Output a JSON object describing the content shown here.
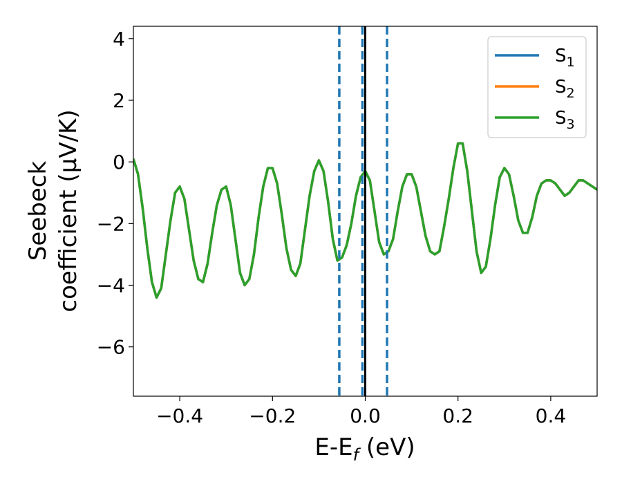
{
  "chart_data": {
    "type": "line",
    "xlabel": "E-E",
    "xlabel_sub": "f",
    "xlabel_unit": " (eV)",
    "ylabel_line1": "Seebeck",
    "ylabel_line2": "coefficient  (μV/K)",
    "xlim": [
      -0.5,
      0.5
    ],
    "ylim": [
      -7.6,
      4.4
    ],
    "xticks": [
      -0.4,
      -0.2,
      0.0,
      0.2,
      0.4
    ],
    "xtick_labels": [
      "−0.4",
      "−0.2",
      "0.0",
      "0.2",
      "0.4"
    ],
    "yticks": [
      4,
      2,
      0,
      -2,
      -4,
      -6
    ],
    "ytick_labels": [
      "4",
      "2",
      "0",
      "−2",
      "−4",
      "−6"
    ],
    "legend_position": "top-right",
    "series": [
      {
        "name": "S",
        "name_sub": "1",
        "color": "#1f77b4",
        "x": [
          -0.5,
          -0.49,
          -0.48,
          -0.47,
          -0.46,
          -0.45,
          -0.44,
          -0.43,
          -0.42,
          -0.41,
          -0.4,
          -0.39,
          -0.38,
          -0.37,
          -0.36,
          -0.35,
          -0.34,
          -0.33,
          -0.32,
          -0.31,
          -0.3,
          -0.29,
          -0.28,
          -0.27,
          -0.26,
          -0.25,
          -0.24,
          -0.23,
          -0.22,
          -0.21,
          -0.2,
          -0.19,
          -0.18,
          -0.17,
          -0.16,
          -0.15,
          -0.14,
          -0.13,
          -0.12,
          -0.11,
          -0.1,
          -0.09,
          -0.08,
          -0.07,
          -0.06,
          -0.05,
          -0.04,
          -0.03,
          -0.02,
          -0.01,
          0.0,
          0.01,
          0.02,
          0.03,
          0.04,
          0.05,
          0.06,
          0.07,
          0.08,
          0.09,
          0.1,
          0.11,
          0.12,
          0.13,
          0.14,
          0.15,
          0.16,
          0.17,
          0.18,
          0.19,
          0.2,
          0.21,
          0.22,
          0.23,
          0.24,
          0.25,
          0.26,
          0.27,
          0.28,
          0.29,
          0.3,
          0.31,
          0.32,
          0.33,
          0.34,
          0.35,
          0.36,
          0.37,
          0.38,
          0.39,
          0.4,
          0.41,
          0.42,
          0.43,
          0.44,
          0.45,
          0.46,
          0.47,
          0.48,
          0.49,
          0.5
        ],
        "y": [
          0.1,
          -0.4,
          -1.5,
          -2.8,
          -3.9,
          -4.4,
          -4.1,
          -3.0,
          -1.9,
          -1.0,
          -0.8,
          -1.2,
          -2.2,
          -3.2,
          -3.8,
          -3.9,
          -3.3,
          -2.3,
          -1.4,
          -0.9,
          -0.8,
          -1.4,
          -2.5,
          -3.6,
          -4.0,
          -3.8,
          -3.0,
          -1.8,
          -0.8,
          -0.2,
          -0.2,
          -0.7,
          -1.7,
          -2.8,
          -3.5,
          -3.7,
          -3.3,
          -2.2,
          -1.1,
          -0.3,
          0.05,
          -0.3,
          -1.3,
          -2.5,
          -3.2,
          -3.1,
          -2.7,
          -2.0,
          -1.1,
          -0.5,
          -0.3,
          -0.6,
          -1.6,
          -2.6,
          -3.0,
          -2.9,
          -2.5,
          -1.6,
          -0.8,
          -0.4,
          -0.4,
          -0.8,
          -1.6,
          -2.4,
          -2.9,
          -3.0,
          -2.9,
          -2.1,
          -1.2,
          -0.2,
          0.6,
          0.6,
          -0.3,
          -1.6,
          -2.9,
          -3.6,
          -3.4,
          -2.5,
          -1.4,
          -0.5,
          -0.2,
          -0.4,
          -1.1,
          -1.9,
          -2.3,
          -2.3,
          -1.8,
          -1.1,
          -0.7,
          -0.6,
          -0.6,
          -0.7,
          -0.9,
          -1.1,
          -1.0,
          -0.8,
          -0.6,
          -0.6,
          -0.7,
          -0.8,
          -0.9
        ]
      },
      {
        "name": "S",
        "name_sub": "2",
        "color": "#ff7f0e",
        "x": [
          -0.5,
          -0.49,
          -0.48,
          -0.47,
          -0.46,
          -0.45,
          -0.44,
          -0.43,
          -0.42,
          -0.41,
          -0.4,
          -0.39,
          -0.38,
          -0.37,
          -0.36,
          -0.35,
          -0.34,
          -0.33,
          -0.32,
          -0.31,
          -0.3,
          -0.29,
          -0.28,
          -0.27,
          -0.26,
          -0.25,
          -0.24,
          -0.23,
          -0.22,
          -0.21,
          -0.2,
          -0.19,
          -0.18,
          -0.17,
          -0.16,
          -0.15,
          -0.14,
          -0.13,
          -0.12,
          -0.11,
          -0.1,
          -0.09,
          -0.08,
          -0.07,
          -0.06,
          -0.05,
          -0.04,
          -0.03,
          -0.02,
          -0.01,
          0.0,
          0.01,
          0.02,
          0.03,
          0.04,
          0.05,
          0.06,
          0.07,
          0.08,
          0.09,
          0.1,
          0.11,
          0.12,
          0.13,
          0.14,
          0.15,
          0.16,
          0.17,
          0.18,
          0.19,
          0.2,
          0.21,
          0.22,
          0.23,
          0.24,
          0.25,
          0.26,
          0.27,
          0.28,
          0.29,
          0.3,
          0.31,
          0.32,
          0.33,
          0.34,
          0.35,
          0.36,
          0.37,
          0.38,
          0.39,
          0.4,
          0.41,
          0.42,
          0.43,
          0.44,
          0.45,
          0.46,
          0.47,
          0.48,
          0.49,
          0.5
        ],
        "y": [
          0.1,
          -0.4,
          -1.5,
          -2.8,
          -3.9,
          -4.4,
          -4.1,
          -3.0,
          -1.9,
          -1.0,
          -0.8,
          -1.2,
          -2.2,
          -3.2,
          -3.8,
          -3.9,
          -3.3,
          -2.3,
          -1.4,
          -0.9,
          -0.8,
          -1.4,
          -2.5,
          -3.6,
          -4.0,
          -3.8,
          -3.0,
          -1.8,
          -0.8,
          -0.2,
          -0.2,
          -0.7,
          -1.7,
          -2.8,
          -3.5,
          -3.7,
          -3.3,
          -2.2,
          -1.1,
          -0.3,
          0.05,
          -0.3,
          -1.3,
          -2.5,
          -3.2,
          -3.1,
          -2.7,
          -2.0,
          -1.1,
          -0.5,
          -0.3,
          -0.6,
          -1.6,
          -2.6,
          -3.0,
          -2.9,
          -2.5,
          -1.6,
          -0.8,
          -0.4,
          -0.4,
          -0.8,
          -1.6,
          -2.4,
          -2.9,
          -3.0,
          -2.9,
          -2.1,
          -1.2,
          -0.2,
          0.6,
          0.6,
          -0.3,
          -1.6,
          -2.9,
          -3.6,
          -3.4,
          -2.5,
          -1.4,
          -0.5,
          -0.2,
          -0.4,
          -1.1,
          -1.9,
          -2.3,
          -2.3,
          -1.8,
          -1.1,
          -0.7,
          -0.6,
          -0.6,
          -0.7,
          -0.9,
          -1.1,
          -1.0,
          -0.8,
          -0.6,
          -0.6,
          -0.7,
          -0.8,
          -0.9
        ]
      },
      {
        "name": "S",
        "name_sub": "3",
        "color": "#2ca02c",
        "x": [
          -0.5,
          -0.49,
          -0.48,
          -0.47,
          -0.46,
          -0.45,
          -0.44,
          -0.43,
          -0.42,
          -0.41,
          -0.4,
          -0.39,
          -0.38,
          -0.37,
          -0.36,
          -0.35,
          -0.34,
          -0.33,
          -0.32,
          -0.31,
          -0.3,
          -0.29,
          -0.28,
          -0.27,
          -0.26,
          -0.25,
          -0.24,
          -0.23,
          -0.22,
          -0.21,
          -0.2,
          -0.19,
          -0.18,
          -0.17,
          -0.16,
          -0.15,
          -0.14,
          -0.13,
          -0.12,
          -0.11,
          -0.1,
          -0.09,
          -0.08,
          -0.07,
          -0.06,
          -0.05,
          -0.04,
          -0.03,
          -0.02,
          -0.01,
          0.0,
          0.01,
          0.02,
          0.03,
          0.04,
          0.05,
          0.06,
          0.07,
          0.08,
          0.09,
          0.1,
          0.11,
          0.12,
          0.13,
          0.14,
          0.15,
          0.16,
          0.17,
          0.18,
          0.19,
          0.2,
          0.21,
          0.22,
          0.23,
          0.24,
          0.25,
          0.26,
          0.27,
          0.28,
          0.29,
          0.3,
          0.31,
          0.32,
          0.33,
          0.34,
          0.35,
          0.36,
          0.37,
          0.38,
          0.39,
          0.4,
          0.41,
          0.42,
          0.43,
          0.44,
          0.45,
          0.46,
          0.47,
          0.48,
          0.49,
          0.5
        ],
        "y": [
          0.1,
          -0.4,
          -1.5,
          -2.8,
          -3.9,
          -4.4,
          -4.1,
          -3.0,
          -1.9,
          -1.0,
          -0.8,
          -1.2,
          -2.2,
          -3.2,
          -3.8,
          -3.9,
          -3.3,
          -2.3,
          -1.4,
          -0.9,
          -0.8,
          -1.4,
          -2.5,
          -3.6,
          -4.0,
          -3.8,
          -3.0,
          -1.8,
          -0.8,
          -0.2,
          -0.2,
          -0.7,
          -1.7,
          -2.8,
          -3.5,
          -3.7,
          -3.3,
          -2.2,
          -1.1,
          -0.3,
          0.05,
          -0.3,
          -1.3,
          -2.5,
          -3.2,
          -3.1,
          -2.7,
          -2.0,
          -1.1,
          -0.5,
          -0.3,
          -0.6,
          -1.6,
          -2.6,
          -3.0,
          -2.9,
          -2.5,
          -1.6,
          -0.8,
          -0.4,
          -0.4,
          -0.8,
          -1.6,
          -2.4,
          -2.9,
          -3.0,
          -2.9,
          -2.1,
          -1.2,
          -0.2,
          0.6,
          0.6,
          -0.3,
          -1.6,
          -2.9,
          -3.6,
          -3.4,
          -2.5,
          -1.4,
          -0.5,
          -0.2,
          -0.4,
          -1.1,
          -1.9,
          -2.3,
          -2.3,
          -1.8,
          -1.1,
          -0.7,
          -0.6,
          -0.6,
          -0.7,
          -0.9,
          -1.1,
          -1.0,
          -0.8,
          -0.6,
          -0.6,
          -0.7,
          -0.8,
          -0.9
        ]
      }
    ],
    "vlines": [
      {
        "x": -0.056,
        "style": "dashed",
        "color": "#1f77b4"
      },
      {
        "x": -0.006,
        "style": "dashed",
        "color": "#1f77b4"
      },
      {
        "x": 0.047,
        "style": "dashed",
        "color": "#1f77b4"
      },
      {
        "x": 0.0,
        "style": "solid",
        "color": "#000000"
      }
    ]
  }
}
